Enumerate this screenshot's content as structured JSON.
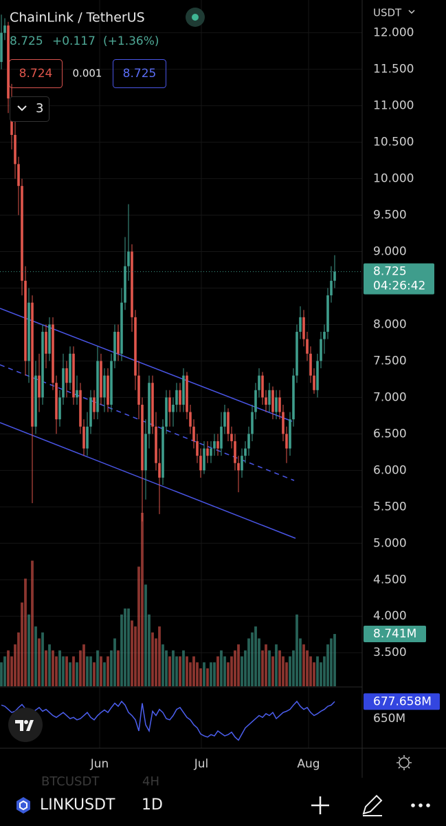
{
  "header": {
    "symbol": "ChainLink / TetherUS",
    "last": "8.725",
    "change": "+0.117",
    "change_pct": "(+1.36%)",
    "bid": "8.724",
    "spread": "0.001",
    "ask": "8.725",
    "indicators_count": "3",
    "currency": "USDT"
  },
  "chart_data": {
    "type": "candlestick",
    "up_color": "#3f9d8c",
    "down_color": "#e0564c",
    "ohlc": [
      [
        11.6,
        12.25,
        11.5,
        12.0
      ],
      [
        12.0,
        12.2,
        11.9,
        12.1
      ],
      [
        12.1,
        12.15,
        10.9,
        11.1
      ],
      [
        11.1,
        11.3,
        10.4,
        10.6
      ],
      [
        10.6,
        10.8,
        10.0,
        10.2
      ],
      [
        10.2,
        10.3,
        9.5,
        9.9
      ],
      [
        9.9,
        10.0,
        8.4,
        8.6
      ],
      [
        8.6,
        8.8,
        7.3,
        7.5
      ],
      [
        7.5,
        8.5,
        7.2,
        8.3
      ],
      [
        8.3,
        8.4,
        5.55,
        6.6
      ],
      [
        6.6,
        7.5,
        6.5,
        7.3
      ],
      [
        7.3,
        7.6,
        6.8,
        7.0
      ],
      [
        7.0,
        8.0,
        6.9,
        7.9
      ],
      [
        7.9,
        8.0,
        7.4,
        7.6
      ],
      [
        7.6,
        8.1,
        7.5,
        8.0
      ],
      [
        8.0,
        8.1,
        7.1,
        7.2
      ],
      [
        7.2,
        7.3,
        6.5,
        6.7
      ],
      [
        6.7,
        7.1,
        6.6,
        7.0
      ],
      [
        7.0,
        7.6,
        6.9,
        7.4
      ],
      [
        7.4,
        7.5,
        7.0,
        7.2
      ],
      [
        7.2,
        7.7,
        7.1,
        7.6
      ],
      [
        7.6,
        7.7,
        6.9,
        7.0
      ],
      [
        7.0,
        7.3,
        6.9,
        7.1
      ],
      [
        7.1,
        7.2,
        6.5,
        6.6
      ],
      [
        6.6,
        6.7,
        6.2,
        6.3
      ],
      [
        6.3,
        6.8,
        6.2,
        6.6
      ],
      [
        6.6,
        7.1,
        6.5,
        7.0
      ],
      [
        7.0,
        7.1,
        6.7,
        6.8
      ],
      [
        6.8,
        7.7,
        6.7,
        7.5
      ],
      [
        7.5,
        7.6,
        6.9,
        7.0
      ],
      [
        7.0,
        7.4,
        6.8,
        7.3
      ],
      [
        7.3,
        7.4,
        6.8,
        6.9
      ],
      [
        6.9,
        7.6,
        6.8,
        7.5
      ],
      [
        7.5,
        8.0,
        7.4,
        7.9
      ],
      [
        7.9,
        8.0,
        7.5,
        7.6
      ],
      [
        7.6,
        8.5,
        7.5,
        8.3
      ],
      [
        8.3,
        9.2,
        8.2,
        8.8
      ],
      [
        8.8,
        9.65,
        8.6,
        9.0
      ],
      [
        9.0,
        9.1,
        7.9,
        8.1
      ],
      [
        8.1,
        8.2,
        7.1,
        7.3
      ],
      [
        7.3,
        7.5,
        6.7,
        6.9
      ],
      [
        6.9,
        7.0,
        5.3,
        6.0
      ],
      [
        6.0,
        6.7,
        5.6,
        6.5
      ],
      [
        6.5,
        7.3,
        6.3,
        7.2
      ],
      [
        7.2,
        7.3,
        6.5,
        6.6
      ],
      [
        6.6,
        6.8,
        6.0,
        6.1
      ],
      [
        6.1,
        6.3,
        5.4,
        5.9
      ],
      [
        5.9,
        6.7,
        5.8,
        6.6
      ],
      [
        6.6,
        7.1,
        6.5,
        7.0
      ],
      [
        7.0,
        7.1,
        6.6,
        6.8
      ],
      [
        6.8,
        7.0,
        6.6,
        6.9
      ],
      [
        6.9,
        7.2,
        6.8,
        7.1
      ],
      [
        7.1,
        7.2,
        6.8,
        6.9
      ],
      [
        6.9,
        7.4,
        6.8,
        7.3
      ],
      [
        7.3,
        7.35,
        6.7,
        6.8
      ],
      [
        6.8,
        6.9,
        6.5,
        6.6
      ],
      [
        6.6,
        6.7,
        6.3,
        6.4
      ],
      [
        6.4,
        6.5,
        6.1,
        6.2
      ],
      [
        6.2,
        6.3,
        5.9,
        6.0
      ],
      [
        6.0,
        6.4,
        5.95,
        6.3
      ],
      [
        6.3,
        6.4,
        6.1,
        6.2
      ],
      [
        6.2,
        6.4,
        6.1,
        6.3
      ],
      [
        6.3,
        6.5,
        6.2,
        6.4
      ],
      [
        6.4,
        6.5,
        6.2,
        6.3
      ],
      [
        6.3,
        6.8,
        6.2,
        6.6
      ],
      [
        6.6,
        6.9,
        6.5,
        6.8
      ],
      [
        6.8,
        6.85,
        6.4,
        6.5
      ],
      [
        6.5,
        6.6,
        6.3,
        6.4
      ],
      [
        6.4,
        6.5,
        6.0,
        6.1
      ],
      [
        6.1,
        6.2,
        5.7,
        6.0
      ],
      [
        6.0,
        6.3,
        5.9,
        6.2
      ],
      [
        6.2,
        6.4,
        6.1,
        6.3
      ],
      [
        6.3,
        6.6,
        6.2,
        6.5
      ],
      [
        6.5,
        6.9,
        6.4,
        6.8
      ],
      [
        6.8,
        7.2,
        6.7,
        7.1
      ],
      [
        7.1,
        7.4,
        7.0,
        7.3
      ],
      [
        7.3,
        7.35,
        6.9,
        7.0
      ],
      [
        7.0,
        7.1,
        6.8,
        6.9
      ],
      [
        6.9,
        7.2,
        6.8,
        7.1
      ],
      [
        7.1,
        7.15,
        6.7,
        6.8
      ],
      [
        6.8,
        7.1,
        6.7,
        7.0
      ],
      [
        7.0,
        7.1,
        6.7,
        6.8
      ],
      [
        6.8,
        6.9,
        6.4,
        6.5
      ],
      [
        6.5,
        6.6,
        6.1,
        6.3
      ],
      [
        6.3,
        6.8,
        6.2,
        6.7
      ],
      [
        6.7,
        7.4,
        6.6,
        7.3
      ],
      [
        7.3,
        8.0,
        7.2,
        7.9
      ],
      [
        7.9,
        8.25,
        7.8,
        8.1
      ],
      [
        8.1,
        8.2,
        7.7,
        7.8
      ],
      [
        7.8,
        7.9,
        7.5,
        7.6
      ],
      [
        7.6,
        7.7,
        7.2,
        7.3
      ],
      [
        7.3,
        7.4,
        7.05,
        7.1
      ],
      [
        7.1,
        7.6,
        7.0,
        7.5
      ],
      [
        7.5,
        7.9,
        7.4,
        7.8
      ],
      [
        7.8,
        8.0,
        7.6,
        7.9
      ],
      [
        7.9,
        8.5,
        7.8,
        8.4
      ],
      [
        8.4,
        8.8,
        8.3,
        8.6
      ],
      [
        8.6,
        8.95,
        8.5,
        8.725
      ]
    ],
    "ylim": [
      3.03,
      12.45
    ],
    "yticks": [
      {
        "value": 12,
        "label": "12.000"
      },
      {
        "value": 11.5,
        "label": "11.500"
      },
      {
        "value": 11,
        "label": "11.000"
      },
      {
        "value": 10.5,
        "label": "10.500"
      },
      {
        "value": 10,
        "label": "10.000"
      },
      {
        "value": 9.5,
        "label": "9.500"
      },
      {
        "value": 9,
        "label": "9.000"
      },
      {
        "value": 8.5,
        "label": "8.500"
      },
      {
        "value": 8,
        "label": "8.000"
      },
      {
        "value": 7.5,
        "label": "7.500"
      },
      {
        "value": 7,
        "label": "7.000"
      },
      {
        "value": 6.5,
        "label": "6.500"
      },
      {
        "value": 6,
        "label": "6.000"
      },
      {
        "value": 5.5,
        "label": "5.500"
      },
      {
        "value": 5,
        "label": "5.000"
      },
      {
        "value": 4.5,
        "label": "4.500"
      },
      {
        "value": 4,
        "label": "4.000"
      },
      {
        "value": 3.5,
        "label": "3.500"
      }
    ],
    "xticks": [
      {
        "value": 28.6,
        "label": "Jun"
      },
      {
        "value": 58.2,
        "label": "Jul"
      },
      {
        "value": 89.4,
        "label": "Aug"
      }
    ],
    "last_label": "8.725",
    "countdown": "04:26:42",
    "volume": {
      "values": [
        4,
        5,
        6,
        5,
        7,
        9,
        14,
        18,
        12,
        21,
        10,
        8,
        9,
        6,
        7,
        6,
        5,
        6,
        5,
        5,
        4,
        5,
        4,
        6,
        7,
        5,
        5,
        4,
        6,
        5,
        4,
        5,
        6,
        8,
        6,
        12,
        13,
        13,
        11,
        10,
        20,
        29,
        17,
        12,
        9,
        8,
        10,
        7,
        6,
        5,
        6,
        5,
        5,
        6,
        5,
        4,
        5,
        4,
        3,
        4,
        3,
        4,
        4,
        5,
        6,
        5,
        4,
        5,
        6,
        7,
        5,
        6,
        8,
        9,
        10,
        8,
        6,
        7,
        6,
        5,
        7,
        6,
        5,
        4,
        5,
        6,
        12,
        8,
        7,
        6,
        5,
        4,
        5,
        4,
        5,
        7,
        8,
        8.741
      ],
      "last_label": "8.741M"
    },
    "indicator": {
      "color": "#4c5ff0",
      "ylim": [
        612,
        688
      ],
      "yticks": [
        {
          "value": 650,
          "label": "650M"
        }
      ],
      "last_label": "677.658M",
      "values": [
        672,
        670,
        665,
        660,
        662,
        668,
        673,
        666,
        655,
        660,
        664,
        668,
        662,
        665,
        660,
        655,
        652,
        656,
        660,
        655,
        650,
        652,
        648,
        650,
        655,
        660,
        652,
        648,
        655,
        660,
        664,
        660,
        668,
        675,
        670,
        678,
        672,
        660,
        655,
        648,
        630,
        675,
        640,
        630,
        662,
        655,
        665,
        660,
        650,
        648,
        655,
        665,
        668,
        660,
        652,
        648,
        640,
        635,
        625,
        622,
        620,
        624,
        622,
        630,
        626,
        622,
        624,
        628,
        620,
        615,
        625,
        635,
        640,
        645,
        650,
        655,
        652,
        658,
        655,
        660,
        650,
        655,
        660,
        662,
        665,
        672,
        678,
        670,
        665,
        668,
        660,
        655,
        658,
        662,
        665,
        670,
        672,
        677.658
      ]
    }
  },
  "toolbar": {
    "ghost": "BTCUSDT",
    "ghost_interval": "4H",
    "symbol": "LINKUSDT",
    "interval": "1D"
  }
}
